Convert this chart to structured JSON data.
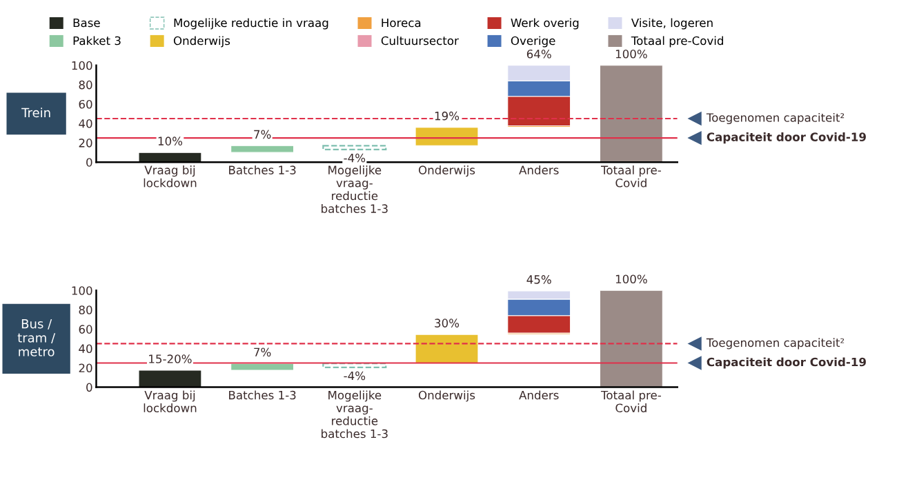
{
  "chart_data": [
    {
      "type": "bar",
      "title": "Trein",
      "legend": "top",
      "categories": [
        "Vraag bij\nlockdown",
        "Batches 1-3",
        "Mogelijke\nvraag-\nreductie\nbatches 1-3",
        "Onderwijs",
        "Anders",
        "Totaal pre-\nCovid"
      ],
      "series": [
        {
          "name": "Base",
          "color": "#262a22",
          "base": [
            0,
            null,
            null,
            null,
            null,
            null
          ],
          "values": [
            10,
            null,
            null,
            null,
            null,
            null
          ]
        },
        {
          "name": "Pakket 3",
          "color": "#8cc8a0",
          "base": [
            null,
            10,
            null,
            null,
            null,
            null
          ],
          "values": [
            null,
            7,
            null,
            null,
            null,
            null
          ]
        },
        {
          "name": "Mogelijke reductie in vraag",
          "color": "#7fbfb0",
          "line_style": "dashed",
          "base": [
            null,
            null,
            17,
            null,
            null,
            null
          ],
          "values": [
            null,
            null,
            -4,
            null,
            null,
            null
          ]
        },
        {
          "name": "Onderwijs",
          "color": "#e8c030",
          "base": [
            null,
            null,
            null,
            17,
            null,
            null
          ],
          "values": [
            null,
            null,
            null,
            19,
            null,
            null
          ]
        },
        {
          "name": "Horeca",
          "color": "#f0a040",
          "base": [
            null,
            null,
            null,
            null,
            36,
            null
          ],
          "values": [
            null,
            null,
            null,
            null,
            1.5,
            null
          ]
        },
        {
          "name": "Cultuursector",
          "color": "#e89aac",
          "values": [
            null,
            null,
            null,
            null,
            null,
            null
          ]
        },
        {
          "name": "Werk overig",
          "color": "#c0302a",
          "base": [
            null,
            null,
            null,
            null,
            37.5,
            null
          ],
          "values": [
            null,
            null,
            null,
            null,
            30.5,
            null
          ]
        },
        {
          "name": "Overige",
          "color": "#4a74b8",
          "base": [
            null,
            null,
            null,
            null,
            68,
            null
          ],
          "values": [
            null,
            null,
            null,
            null,
            16,
            null
          ]
        },
        {
          "name": "Visite, logeren",
          "color": "#d8daf0",
          "base": [
            null,
            null,
            null,
            null,
            84,
            null
          ],
          "values": [
            null,
            null,
            null,
            null,
            16,
            null
          ]
        },
        {
          "name": "Totaal pre-Covid",
          "color": "#9b8b87",
          "base": [
            null,
            null,
            null,
            null,
            null,
            0
          ],
          "values": [
            null,
            null,
            null,
            null,
            null,
            100
          ]
        }
      ],
      "totals": [
        "10%",
        "7%",
        "-4%",
        "19%",
        "64%",
        "100%"
      ],
      "ylim": [
        0,
        100
      ],
      "yticks": [
        0,
        20,
        40,
        60,
        80,
        100
      ],
      "grid": false,
      "ref_lines": [
        {
          "axis": "y",
          "value": 45,
          "label": "Toegenomen capaciteit²",
          "color": "#e0304a",
          "line_style": "dashed"
        },
        {
          "axis": "y",
          "value": 25,
          "label": "Capaciteit door Covid-19",
          "color": "#e0304a",
          "line_style": "solid"
        }
      ]
    },
    {
      "type": "bar",
      "title": "Bus /\ntram /\nmetro",
      "legend": false,
      "categories": [
        "Vraag bij\nlockdown",
        "Batches 1-3",
        "Mogelijke\nvraag-\nreductie\nbatches 1-3",
        "Onderwijs",
        "Anders",
        "Totaal pre-\nCovid"
      ],
      "series": [
        {
          "color": "#262a22",
          "base": [
            0,
            null,
            null,
            null,
            null,
            null
          ],
          "values": [
            17.5,
            null,
            null,
            null,
            null,
            null
          ]
        },
        {
          "color": "#8cc8a0",
          "base": [
            null,
            17.5,
            null,
            null,
            null,
            null
          ],
          "values": [
            null,
            7,
            null,
            null,
            null,
            null
          ]
        },
        {
          "color": "#7fbfb0",
          "line_style": "dashed",
          "base": [
            null,
            null,
            24.5,
            null,
            null,
            null
          ],
          "values": [
            null,
            null,
            -4,
            null,
            null,
            null
          ]
        },
        {
          "color": "#e8c030",
          "base": [
            null,
            null,
            null,
            24.5,
            null,
            null
          ],
          "values": [
            null,
            null,
            null,
            30,
            null,
            null
          ]
        },
        {
          "color": "#f0a040",
          "base": [
            null,
            null,
            null,
            null,
            54.5,
            null
          ],
          "values": [
            null,
            null,
            null,
            null,
            1.5,
            null
          ]
        },
        {
          "color": "#c0302a",
          "base": [
            null,
            null,
            null,
            null,
            56,
            null
          ],
          "values": [
            null,
            null,
            null,
            null,
            18,
            null
          ]
        },
        {
          "color": "#4a74b8",
          "base": [
            null,
            null,
            null,
            null,
            74,
            null
          ],
          "values": [
            null,
            null,
            null,
            null,
            17,
            null
          ]
        },
        {
          "color": "#d8daf0",
          "base": [
            null,
            null,
            null,
            null,
            91,
            null
          ],
          "values": [
            null,
            null,
            null,
            null,
            8.5,
            null
          ]
        },
        {
          "color": "#9b8b87",
          "base": [
            null,
            null,
            null,
            null,
            null,
            0
          ],
          "values": [
            null,
            null,
            null,
            null,
            null,
            100
          ]
        }
      ],
      "totals": [
        "15-20%",
        "7%",
        "-4%",
        "30%",
        "45%",
        "100%"
      ],
      "ylim": [
        0,
        100
      ],
      "yticks": [
        0,
        20,
        40,
        60,
        80,
        100
      ],
      "grid": false,
      "ref_lines": [
        {
          "axis": "y",
          "value": 45,
          "label": "Toegenomen capaciteit²",
          "color": "#e0304a",
          "line_style": "dashed"
        },
        {
          "axis": "y",
          "value": 25,
          "label": "Capaciteit door Covid-19",
          "color": "#e0304a",
          "line_style": "solid"
        }
      ]
    }
  ]
}
